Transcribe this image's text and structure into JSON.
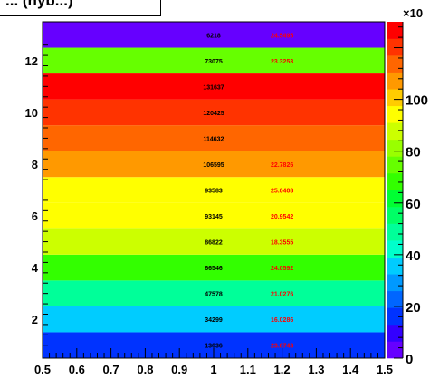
{
  "chart_data": {
    "type": "heatmap",
    "title": "... (hyb...)",
    "xlabel": "",
    "ylabel": "",
    "xlim": [
      0.5,
      1.5
    ],
    "ylim": [
      0.5,
      13.5
    ],
    "x_ticks": [
      "0.5",
      "0.6",
      "0.7",
      "0.8",
      "0.9",
      "1",
      "1.1",
      "1.2",
      "1.3",
      "1.4",
      "1.5"
    ],
    "y_ticks": [
      "2",
      "4",
      "6",
      "8",
      "10",
      "12"
    ],
    "zlim": [
      0,
      130000
    ],
    "z_ticks": [
      "0",
      "20",
      "40",
      "60",
      "80",
      "100"
    ],
    "z_multiplier": "×10",
    "grid": false,
    "rows": [
      {
        "y": 1,
        "count": "13636",
        "value": "23.6743"
      },
      {
        "y": 2,
        "count": "34299",
        "value": "16.0286"
      },
      {
        "y": 3,
        "count": "47578",
        "value": "21.0276"
      },
      {
        "y": 4,
        "count": "66546",
        "value": "24.0592"
      },
      {
        "y": 5,
        "count": "86822",
        "value": "18.3555"
      },
      {
        "y": 6,
        "count": "93145",
        "value": "20.9542"
      },
      {
        "y": 7,
        "count": "93583",
        "value": "25.0408"
      },
      {
        "y": 8,
        "count": "106595",
        "value": "22.7826"
      },
      {
        "y": 9,
        "count": "114632",
        "value": ""
      },
      {
        "y": 10,
        "count": "120425",
        "value": ""
      },
      {
        "y": 11,
        "count": "131637",
        "value": ""
      },
      {
        "y": 12,
        "count": "73075",
        "value": "23.3253"
      },
      {
        "y": 13,
        "count": "6218",
        "value": "24.5495"
      }
    ],
    "palette": [
      "#6600ff",
      "#3300ff",
      "#0033ff",
      "#0066ff",
      "#0099ff",
      "#00ccff",
      "#00ffcc",
      "#00ff99",
      "#00ff66",
      "#00ff33",
      "#33ff00",
      "#66ff00",
      "#99ff00",
      "#ccff00",
      "#ffff00",
      "#ffcc00",
      "#ff9900",
      "#ff6600",
      "#ff3300",
      "#ff0000"
    ],
    "count_color": "#000000",
    "value_color": "#ff0000"
  }
}
